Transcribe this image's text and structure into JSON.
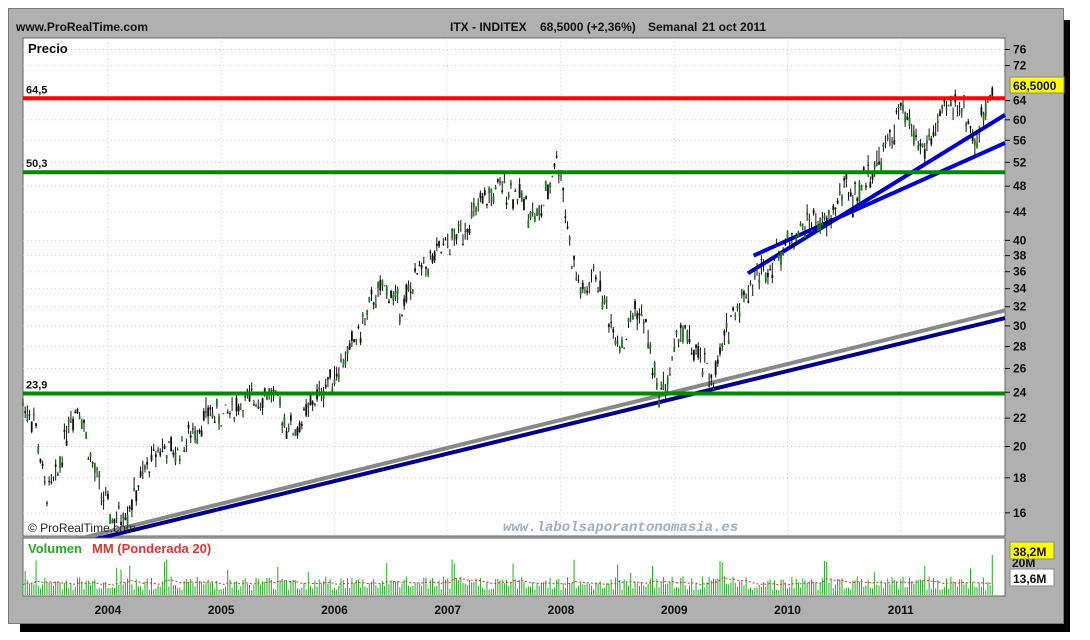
{
  "header": {
    "site": "www.ProRealTime.com",
    "ticker": "ITX - INDITEX",
    "quote": "68,5000 (+2,36%)",
    "period": "Semanal",
    "date": "21 oct 2011"
  },
  "price_panel": {
    "title": "Precio",
    "last_value_badge": "68,5000",
    "copyright": "© ProRealTime.com",
    "watermark": "www.labolsaporantonomasia.es"
  },
  "volume_panel": {
    "title_part1": "Volumen",
    "title_part2": "MM (Ponderada 20)",
    "volume_badge": "38,2M",
    "mm_badge": "13,6M",
    "hidden_tick": "20M"
  },
  "colors": {
    "frame": "#b0b0b0",
    "panel_bg": "#ffffff",
    "price_line": "#111111",
    "up_candle": "#1a7a1a",
    "resistance": "#ff0000",
    "support": "#008800",
    "trend_blue": "#0000cc",
    "trend_navy": "#000088",
    "trend_gray": "#888888",
    "volume_bar": "#22aa22",
    "mm_line": "#dd3333",
    "badge_bg": "#ffff00"
  },
  "chart_data": [
    {
      "type": "line",
      "title": "ITX - INDITEX",
      "ylabel": "Precio",
      "y_scale": "log",
      "ylim": [
        14.8,
        79
      ],
      "xlim": [
        2003.25,
        2011.92
      ],
      "y_ticks": [
        16,
        18,
        20,
        22,
        24,
        26,
        28,
        30,
        32,
        34,
        36,
        38,
        40,
        44,
        48,
        52,
        56,
        60,
        64,
        72,
        76
      ],
      "x_ticks": [
        "2004",
        "2005",
        "2006",
        "2007",
        "2008",
        "2009",
        "2010",
        "2011"
      ],
      "x_tick_positions": [
        2004.0,
        2005.0,
        2006.0,
        2007.0,
        2008.0,
        2009.0,
        2010.0,
        2011.0
      ],
      "series": [
        {
          "x": [
            2003.25,
            2003.35,
            2003.45,
            2003.55,
            2003.65,
            2003.75,
            2003.85,
            2003.95,
            2004.05,
            2004.2,
            2004.3,
            2004.45,
            2004.6,
            2004.75,
            2004.9,
            2005.0,
            2005.15,
            2005.3,
            2005.45,
            2005.55,
            2005.65,
            2005.8,
            2005.95,
            2006.1,
            2006.25,
            2006.35,
            2006.45,
            2006.6,
            2006.75,
            2006.9,
            2007.05,
            2007.2,
            2007.35,
            2007.5,
            2007.6,
            2007.7,
            2007.8,
            2007.9,
            2007.95,
            2008.0,
            2008.1,
            2008.2,
            2008.3,
            2008.45,
            2008.55,
            2008.65,
            2008.75,
            2008.85,
            2008.95,
            2009.05,
            2009.2,
            2009.35,
            2009.5,
            2009.6,
            2009.75,
            2009.85,
            2009.95,
            2010.1,
            2010.2,
            2010.35,
            2010.5,
            2010.6,
            2010.7,
            2010.8,
            2010.9,
            2011.0,
            2011.1,
            2011.2,
            2011.3,
            2011.4,
            2011.5,
            2011.6,
            2011.65,
            2011.72,
            2011.77,
            2011.8
          ],
          "values": [
            23,
            22,
            17,
            18,
            22,
            23,
            19,
            17,
            15.5,
            16.5,
            18,
            20,
            19.5,
            21,
            22.5,
            22,
            23,
            23.5,
            24,
            22,
            21,
            23,
            25,
            27,
            30,
            33,
            34,
            32,
            36,
            38,
            40,
            43,
            46,
            48,
            47,
            45,
            43,
            48,
            53,
            50,
            37,
            33,
            36,
            30,
            28,
            32,
            30,
            24,
            25,
            30,
            27,
            25,
            31,
            33,
            36,
            37,
            39,
            41,
            43,
            42,
            48,
            46,
            50,
            52,
            56,
            62,
            58,
            54,
            58,
            62,
            64,
            60,
            55,
            60,
            65,
            68.5
          ]
        }
      ],
      "horizontal_levels": [
        {
          "value": 64.5,
          "label": "64,5",
          "color": "#ff0000"
        },
        {
          "value": 50.3,
          "label": "50,3",
          "color": "#008800"
        },
        {
          "value": 23.9,
          "label": "23,9",
          "color": "#008800"
        }
      ],
      "trend_lines": [
        {
          "x": [
            2003.25,
            2011.92
          ],
          "y": [
            14.0,
            31.6
          ],
          "color": "#888888"
        },
        {
          "x": [
            2003.25,
            2011.92
          ],
          "y": [
            13.8,
            30.8
          ],
          "color": "#000088"
        },
        {
          "x": [
            2009.65,
            2011.92
          ],
          "y": [
            35.8,
            61.0
          ],
          "color": "#0000cc"
        },
        {
          "x": [
            2009.7,
            2011.92
          ],
          "y": [
            38.0,
            55.5
          ],
          "color": "#0000cc"
        }
      ]
    },
    {
      "type": "bar",
      "title": "Volumen",
      "xlim": [
        2003.25,
        2011.92
      ],
      "series": [
        {
          "name": "Volumen",
          "values": "generated-decorative"
        },
        {
          "name": "MM (Ponderada 20)",
          "values": "generated-decorative"
        }
      ],
      "last_volume": "38,2M",
      "last_mm": "13,6M"
    }
  ]
}
